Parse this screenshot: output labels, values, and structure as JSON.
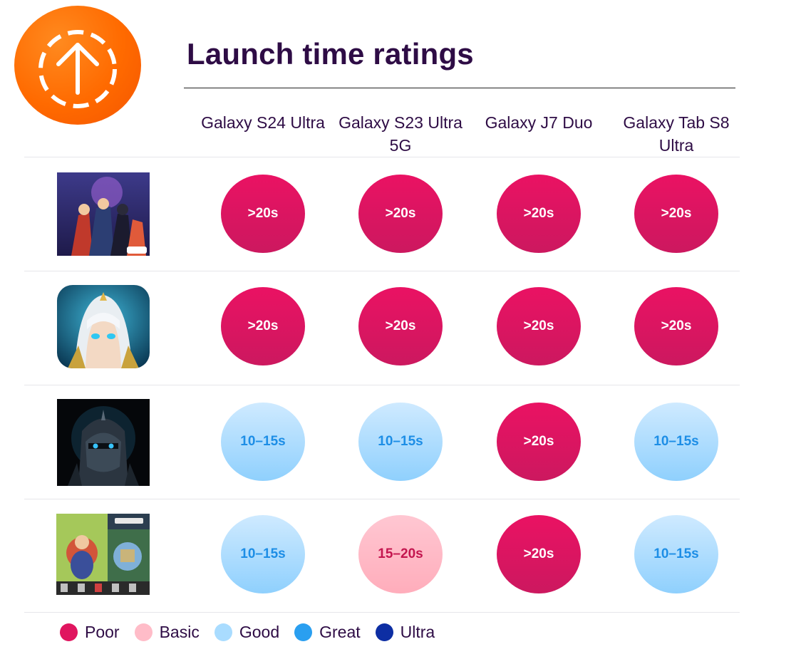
{
  "title": "Launch time ratings",
  "logo_icon": "upload-arrow-icon",
  "colors": {
    "Poor": "#e0155f",
    "Basic": "#ffbcc8",
    "Good": "#a9dcff",
    "Great": "#2a9ff0",
    "Ultra": "#0d2ea3"
  },
  "chart_data": {
    "type": "table",
    "title": "Launch time ratings",
    "columns": [
      "Galaxy S24 Ultra",
      "Galaxy S23 Ultra 5G",
      "Galaxy J7 Duo",
      "Galaxy Tab S8 Ultra"
    ],
    "rows": [
      {
        "icon": "superhero-team-game-icon",
        "cells": [
          {
            "value": ">20s",
            "rating": "Poor"
          },
          {
            "value": ">20s",
            "rating": "Poor"
          },
          {
            "value": ">20s",
            "rating": "Poor"
          },
          {
            "value": ">20s",
            "rating": "Poor"
          }
        ]
      },
      {
        "icon": "hooded-warrior-game-icon",
        "cells": [
          {
            "value": ">20s",
            "rating": "Poor"
          },
          {
            "value": ">20s",
            "rating": "Poor"
          },
          {
            "value": ">20s",
            "rating": "Poor"
          },
          {
            "value": ">20s",
            "rating": "Poor"
          }
        ]
      },
      {
        "icon": "dark-knight-helmet-game-icon",
        "cells": [
          {
            "value": "10–15s",
            "rating": "Good"
          },
          {
            "value": "10–15s",
            "rating": "Good"
          },
          {
            "value": ">20s",
            "rating": "Poor"
          },
          {
            "value": "10–15s",
            "rating": "Good"
          }
        ]
      },
      {
        "icon": "kingdom-strategy-game-icon",
        "cells": [
          {
            "value": "10–15s",
            "rating": "Good"
          },
          {
            "value": "15–20s",
            "rating": "Basic"
          },
          {
            "value": ">20s",
            "rating": "Poor"
          },
          {
            "value": "10–15s",
            "rating": "Good"
          }
        ]
      }
    ],
    "legend": {
      "placement": "bottom-left",
      "items": [
        "Poor",
        "Basic",
        "Good",
        "Great",
        "Ultra"
      ]
    }
  }
}
